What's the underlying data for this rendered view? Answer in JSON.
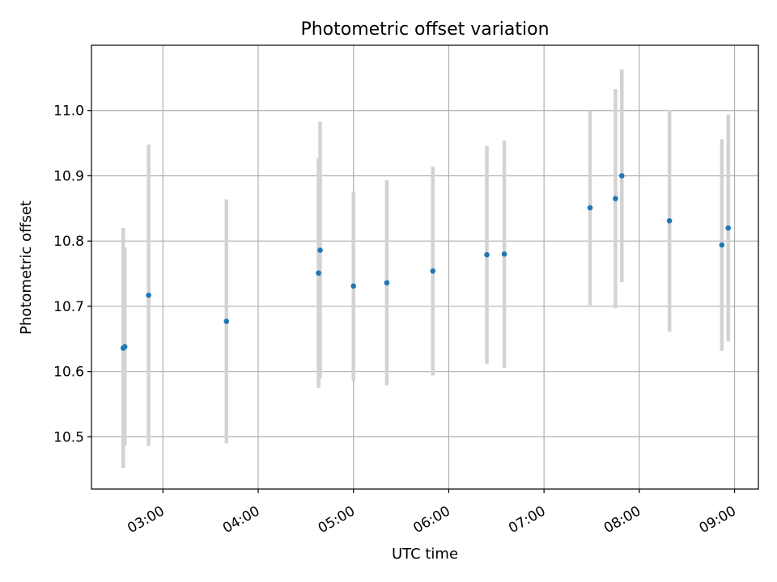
{
  "chart_data": {
    "type": "scatter",
    "title": "Photometric offset variation",
    "xlabel": "UTC time",
    "ylabel": "Photometric offset",
    "grid": true,
    "xlim": [
      "02:15",
      "09:15"
    ],
    "ylim": [
      10.42,
      11.1
    ],
    "x_ticks": [
      "03:00",
      "04:00",
      "05:00",
      "06:00",
      "07:00",
      "08:00",
      "09:00"
    ],
    "y_ticks": [
      10.5,
      10.6,
      10.7,
      10.8,
      10.9,
      11.0
    ],
    "y_tick_labels": [
      "10.5",
      "10.6",
      "10.7",
      "10.8",
      "10.9",
      "11.0"
    ],
    "marker_color": "#1f77b4",
    "errorbar_color": "#d3d3d3",
    "points": [
      {
        "time": "02:35",
        "y": 10.636,
        "err": 0.184
      },
      {
        "time": "02:36",
        "y": 10.638,
        "err": 0.152
      },
      {
        "time": "02:51",
        "y": 10.717,
        "err": 0.231
      },
      {
        "time": "03:40",
        "y": 10.677,
        "err": 0.187
      },
      {
        "time": "04:38",
        "y": 10.751,
        "err": 0.176
      },
      {
        "time": "04:39",
        "y": 10.786,
        "err": 0.197
      },
      {
        "time": "05:00",
        "y": 10.731,
        "err": 0.145
      },
      {
        "time": "05:21",
        "y": 10.736,
        "err": 0.157
      },
      {
        "time": "05:50",
        "y": 10.754,
        "err": 0.16
      },
      {
        "time": "06:24",
        "y": 10.779,
        "err": 0.167
      },
      {
        "time": "06:35",
        "y": 10.78,
        "err": 0.174
      },
      {
        "time": "07:29",
        "y": 10.851,
        "err": 0.149
      },
      {
        "time": "07:45",
        "y": 10.865,
        "err": 0.168
      },
      {
        "time": "07:49",
        "y": 10.9,
        "err": 0.163
      },
      {
        "time": "08:19",
        "y": 10.831,
        "err": 0.17
      },
      {
        "time": "08:52",
        "y": 10.794,
        "err": 0.162
      },
      {
        "time": "08:56",
        "y": 10.82,
        "err": 0.174
      }
    ]
  }
}
